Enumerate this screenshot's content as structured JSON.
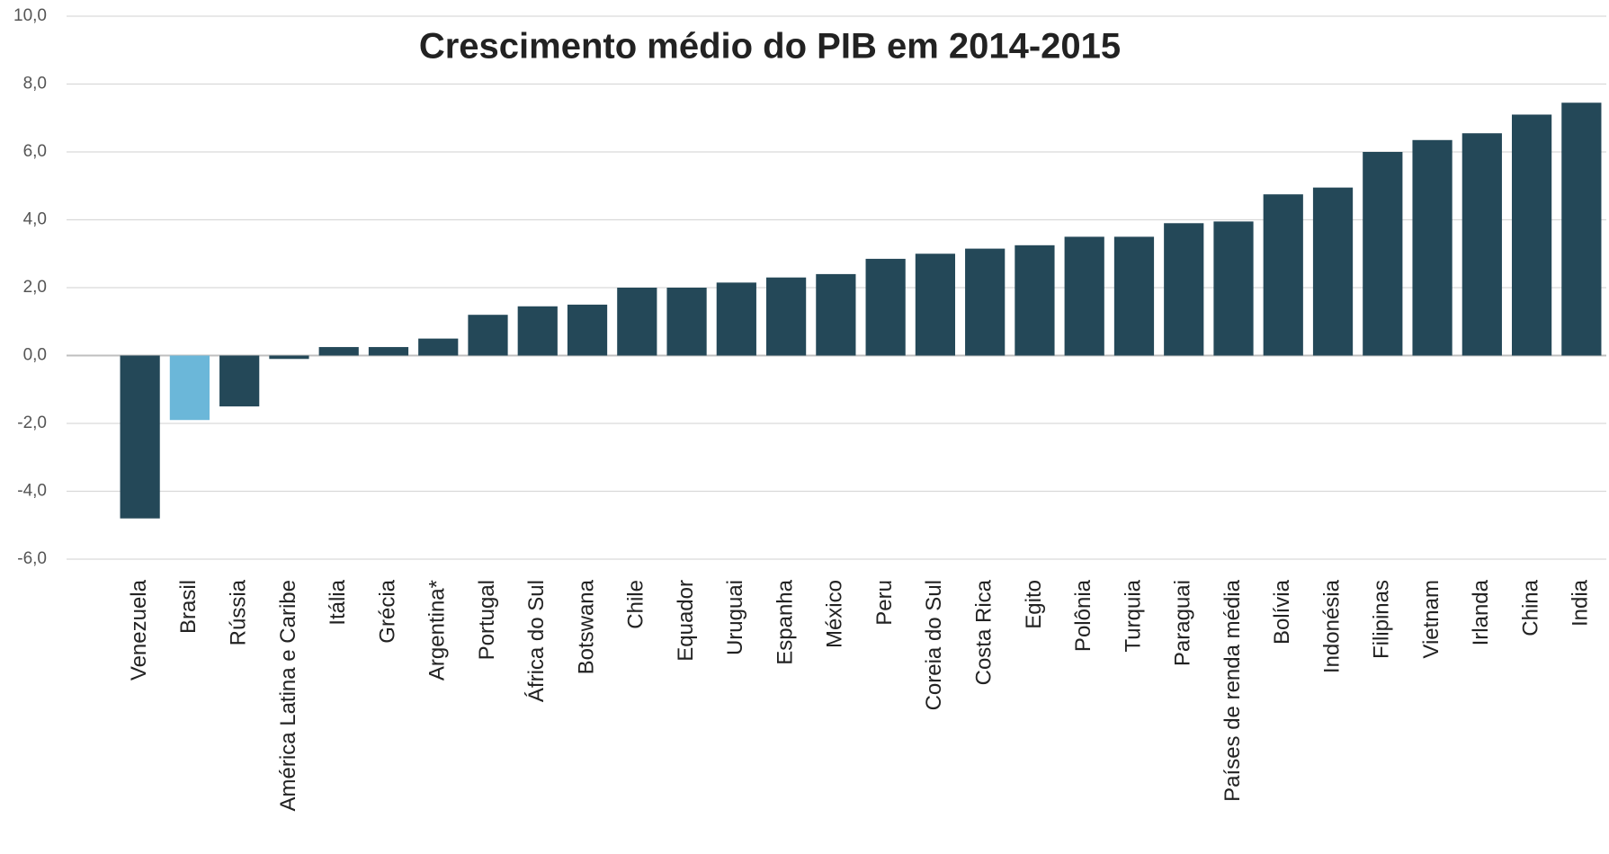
{
  "chart_data": {
    "type": "bar",
    "title": "Crescimento médio do PIB em 2014-2015",
    "categories": [
      "Venezuela",
      "Brasil",
      "Rússia",
      "América Latina e Caribe",
      "Itália",
      "Grécia",
      "Argentina*",
      "Portugal",
      "África do Sul",
      "Botswana",
      "Chile",
      "Equador",
      "Uruguai",
      "Espanha",
      "México",
      "Peru",
      "Coreia do Sul",
      "Costa Rica",
      "Egito",
      "Polônia",
      "Turquia",
      "Paraguai",
      "Países de renda média",
      "Bolívia",
      "Indonésia",
      "Filipinas",
      "Vietnam",
      "Irlanda",
      "China",
      "India"
    ],
    "values": [
      -4.8,
      -1.9,
      -1.5,
      -0.1,
      0.25,
      0.25,
      0.5,
      1.2,
      1.45,
      1.5,
      2.0,
      2.0,
      2.15,
      2.3,
      2.4,
      2.85,
      3.0,
      3.15,
      3.25,
      3.5,
      3.5,
      3.9,
      3.95,
      4.75,
      4.95,
      6.0,
      6.35,
      6.55,
      7.1,
      7.45
    ],
    "colors": [
      "#244858",
      "#6bb7d9",
      "#244858",
      "#244858",
      "#244858",
      "#244858",
      "#244858",
      "#244858",
      "#244858",
      "#244858",
      "#244858",
      "#244858",
      "#244858",
      "#244858",
      "#244858",
      "#244858",
      "#244858",
      "#244858",
      "#244858",
      "#244858",
      "#244858",
      "#244858",
      "#244858",
      "#244858",
      "#244858",
      "#244858",
      "#244858",
      "#244858",
      "#244858",
      "#244858"
    ],
    "ylim": [
      -6,
      10
    ],
    "yticks": [
      {
        "value": -6,
        "label": "-6,0"
      },
      {
        "value": -4,
        "label": "-4,0"
      },
      {
        "value": -2,
        "label": "-2,0"
      },
      {
        "value": 0,
        "label": "0,0"
      },
      {
        "value": 2,
        "label": "2,0"
      },
      {
        "value": 4,
        "label": "4,0"
      },
      {
        "value": 6,
        "label": "6,0"
      },
      {
        "value": 8,
        "label": "8,0"
      },
      {
        "value": 10,
        "label": "10,0"
      }
    ],
    "grid": true
  }
}
